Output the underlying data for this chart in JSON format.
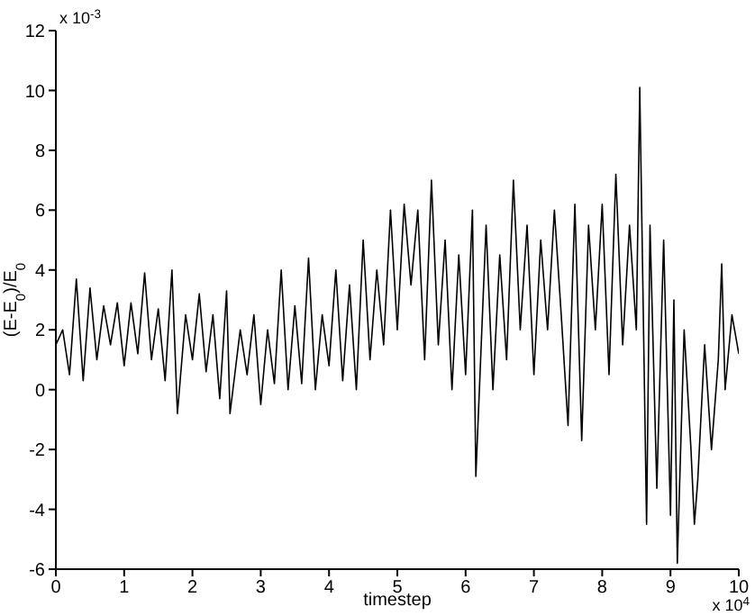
{
  "chart_data": {
    "type": "line",
    "xlabel": "timestep",
    "ylabel": "(E-E$_{0}$)/E$_{0}$",
    "annotations": [
      "x 10$^{-3}$",
      "x 10$^{4}$"
    ],
    "x": [
      0,
      0.1,
      0.2,
      0.3,
      0.4,
      0.5,
      0.6,
      0.7,
      0.8,
      0.9,
      1.0,
      1.1,
      1.2,
      1.3,
      1.4,
      1.5,
      1.6,
      1.7,
      1.78,
      1.9,
      2.0,
      2.1,
      2.2,
      2.3,
      2.4,
      2.5,
      2.55,
      2.7,
      2.8,
      2.9,
      3.0,
      3.1,
      3.2,
      3.3,
      3.4,
      3.5,
      3.6,
      3.7,
      3.8,
      3.9,
      4.0,
      4.1,
      4.2,
      4.3,
      4.4,
      4.5,
      4.6,
      4.7,
      4.8,
      4.9,
      5.0,
      5.1,
      5.2,
      5.3,
      5.4,
      5.5,
      5.6,
      5.7,
      5.8,
      5.9,
      6.0,
      6.1,
      6.15,
      6.3,
      6.4,
      6.5,
      6.6,
      6.7,
      6.8,
      6.9,
      7.0,
      7.1,
      7.2,
      7.3,
      7.4,
      7.5,
      7.6,
      7.7,
      7.8,
      7.9,
      8.0,
      8.1,
      8.2,
      8.3,
      8.4,
      8.5,
      8.55,
      8.65,
      8.7,
      8.8,
      8.9,
      9.0,
      9.05,
      9.1,
      9.2,
      9.3,
      9.35,
      9.4,
      9.5,
      9.6,
      9.7,
      9.75,
      9.8,
      9.9,
      10.0
    ],
    "series": [
      {
        "color": "#000000",
        "values": [
          1.5,
          2.0,
          0.5,
          3.7,
          0.3,
          3.4,
          1.0,
          2.8,
          1.5,
          2.9,
          0.8,
          2.9,
          1.2,
          3.9,
          1.0,
          2.7,
          0.3,
          4.0,
          -0.8,
          2.5,
          1.0,
          3.2,
          0.6,
          2.5,
          -0.3,
          3.3,
          -0.8,
          2.0,
          0.5,
          2.5,
          -0.5,
          2.0,
          0.2,
          4.0,
          0.0,
          2.8,
          0.2,
          4.4,
          0.0,
          2.5,
          0.8,
          4.0,
          0.3,
          3.5,
          0.0,
          5.0,
          1.0,
          4.0,
          1.5,
          6.0,
          2.0,
          6.2,
          3.5,
          6.0,
          1.0,
          7.0,
          1.5,
          5.0,
          0.0,
          4.5,
          0.5,
          6.0,
          -2.9,
          5.5,
          0.0,
          4.5,
          1.0,
          7.0,
          2.0,
          5.5,
          0.5,
          5.0,
          2.0,
          6.0,
          2.5,
          -1.2,
          6.2,
          -1.7,
          5.5,
          2.0,
          6.2,
          0.5,
          7.2,
          1.5,
          5.5,
          2.0,
          10.1,
          -4.5,
          5.5,
          -3.3,
          5.0,
          -4.2,
          3.0,
          -5.8,
          2.0,
          -2.0,
          -4.5,
          -3.0,
          1.5,
          -2.0,
          1.0,
          4.2,
          0.0,
          2.5,
          1.2
        ]
      }
    ],
    "xlim": [
      0,
      10
    ],
    "xticks": [
      0,
      1,
      2,
      3,
      4,
      5,
      6,
      7,
      8,
      9,
      10
    ],
    "ylim": [
      -6,
      12
    ],
    "yticks": [
      -6,
      -4,
      -2,
      0,
      2,
      4,
      6,
      8,
      10,
      12
    ],
    "grid": false,
    "legend": false,
    "marker": "none",
    "line_style": "solid"
  }
}
